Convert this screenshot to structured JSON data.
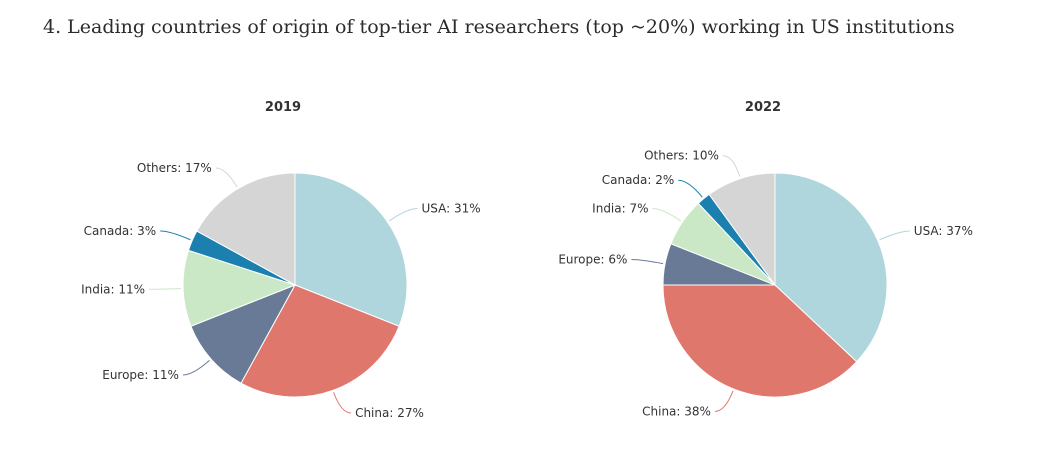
{
  "title": "4. Leading countries of origin of top-tier AI researchers (top ~20%) working in US institutions",
  "colors": {
    "USA": "#aed6dc",
    "China": "#e0776d",
    "Europe": "#687a96",
    "India": "#cbe8c6",
    "Canada": "#1b7fb0",
    "Others": "#d5d5d5"
  },
  "chart_data": [
    {
      "type": "pie",
      "title": "2019",
      "slices": [
        {
          "name": "USA",
          "value": 31,
          "label": "USA: 31%"
        },
        {
          "name": "China",
          "value": 27,
          "label": "China: 27%"
        },
        {
          "name": "Europe",
          "value": 11,
          "label": "Europe: 11%"
        },
        {
          "name": "India",
          "value": 11,
          "label": "India: 11%"
        },
        {
          "name": "Canada",
          "value": 3,
          "label": "Canada: 3%"
        },
        {
          "name": "Others",
          "value": 17,
          "label": "Others: 17%"
        }
      ]
    },
    {
      "type": "pie",
      "title": "2022",
      "slices": [
        {
          "name": "USA",
          "value": 37,
          "label": "USA: 37%"
        },
        {
          "name": "China",
          "value": 38,
          "label": "China: 38%"
        },
        {
          "name": "Europe",
          "value": 6,
          "label": "Europe: 6%"
        },
        {
          "name": "India",
          "value": 7,
          "label": "India: 7%"
        },
        {
          "name": "Canada",
          "value": 2,
          "label": "Canada: 2%"
        },
        {
          "name": "Others",
          "value": 10,
          "label": "Others: 10%"
        }
      ]
    }
  ]
}
